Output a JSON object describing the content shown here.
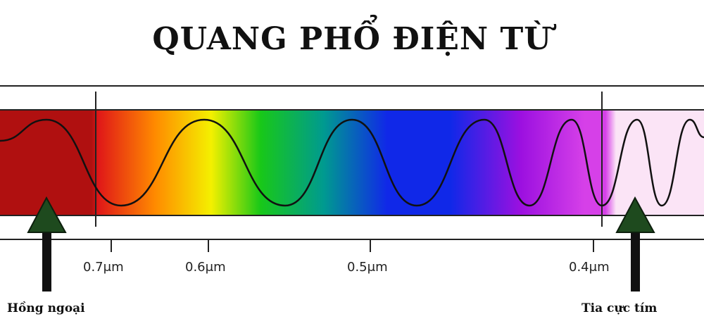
{
  "title": "QUANG PHỔ ĐIỆN TỪ",
  "wavelength_ticks": [
    {
      "label": "0.7μm",
      "value": 0.7
    },
    {
      "label": "0.6μm",
      "value": 0.6
    },
    {
      "label": "0.5μm",
      "value": 0.5
    },
    {
      "label": "0.4μm",
      "value": 0.4
    }
  ],
  "markers": {
    "infrared": {
      "label": "Hồng ngoại",
      "boundary": 0.7
    },
    "ultraviolet": {
      "label": "Tia cực tím",
      "boundary": 0.4
    }
  },
  "colors": {
    "infrared": "#b01010",
    "red": "#e01818",
    "orange": "#ff8a00",
    "yellow": "#f4f000",
    "green": "#18c818",
    "teal": "#009a90",
    "blue": "#1028e8",
    "violet": "#9c10e0",
    "magenta": "#d640e8",
    "ultraviolet": "#fbe4f6",
    "arrow_head": "#1e4a1e",
    "arrow_shaft": "#111111"
  }
}
